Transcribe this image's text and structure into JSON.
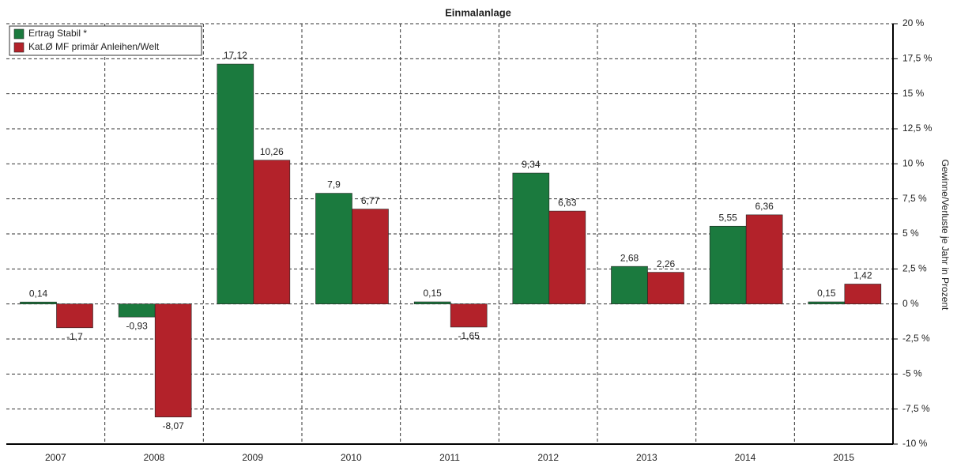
{
  "chart_data": {
    "type": "bar",
    "title": "Einmalanlage",
    "y_axis_label": "Gewinne/Verluste je Jahr in Prozent",
    "categories": [
      "2007",
      "2008",
      "2009",
      "2010",
      "2011",
      "2012",
      "2013",
      "2014",
      "2015"
    ],
    "series": [
      {
        "name": "Ertrag Stabil  *",
        "color": "#1b7a3e",
        "values": [
          0.14,
          -0.93,
          17.12,
          7.9,
          0.15,
          9.34,
          2.68,
          5.55,
          0.15
        ],
        "value_labels": [
          "0,14",
          "-0,93",
          "17,12",
          "7,9",
          "0,15",
          "9,34",
          "2,68",
          "5,55",
          "0,15"
        ]
      },
      {
        "name": "Kat.Ø MF primär Anleihen/Welt",
        "color": "#b3222a",
        "values": [
          -1.7,
          -8.07,
          10.26,
          6.77,
          -1.65,
          6.63,
          2.26,
          6.36,
          1.42
        ],
        "value_labels": [
          "-1,7",
          "-8,07",
          "10,26",
          "6,77",
          "-1,65",
          "6,63",
          "2,26",
          "6,36",
          "1,42"
        ]
      }
    ],
    "ylim": [
      -10,
      20
    ],
    "yticks": [
      {
        "value": 20,
        "label": "20 %"
      },
      {
        "value": 17.5,
        "label": "17,5 %"
      },
      {
        "value": 15,
        "label": "15 %"
      },
      {
        "value": 12.5,
        "label": "12,5 %"
      },
      {
        "value": 10,
        "label": "10 %"
      },
      {
        "value": 7.5,
        "label": "7,5 %"
      },
      {
        "value": 5,
        "label": "5 %"
      },
      {
        "value": 2.5,
        "label": "2,5 %"
      },
      {
        "value": 0,
        "label": "0 %"
      },
      {
        "value": -2.5,
        "label": "-2,5 %"
      },
      {
        "value": -5,
        "label": "-5 %"
      },
      {
        "value": -7.5,
        "label": "-7,5 %"
      },
      {
        "value": -10,
        "label": "-10 %"
      }
    ],
    "grid": true,
    "legend": "upper left"
  }
}
